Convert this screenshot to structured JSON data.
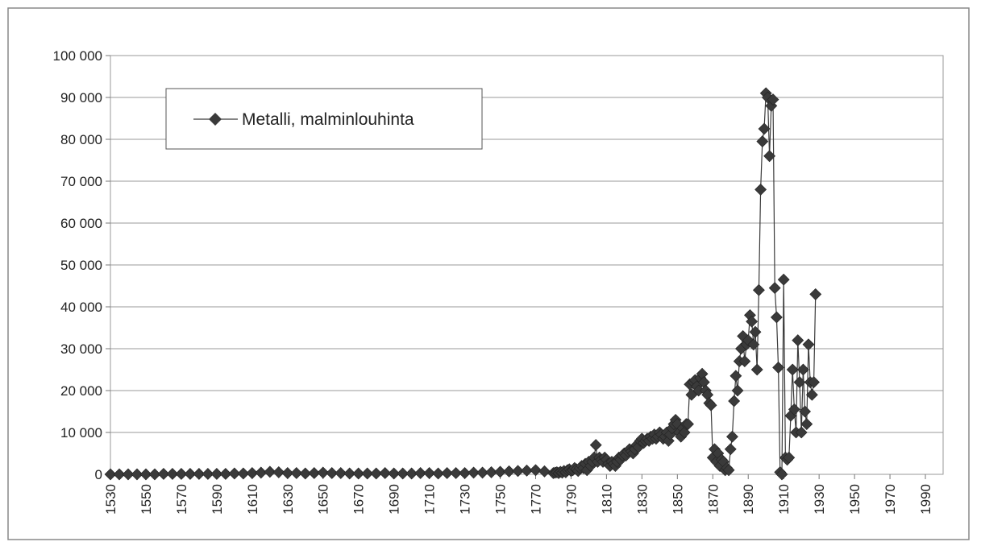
{
  "chart_data": {
    "type": "line",
    "x": [
      1530,
      1535,
      1540,
      1545,
      1550,
      1555,
      1560,
      1565,
      1570,
      1575,
      1580,
      1585,
      1590,
      1595,
      1600,
      1605,
      1610,
      1615,
      1620,
      1625,
      1630,
      1635,
      1640,
      1645,
      1650,
      1655,
      1660,
      1665,
      1670,
      1675,
      1680,
      1685,
      1690,
      1695,
      1700,
      1705,
      1710,
      1715,
      1720,
      1725,
      1730,
      1735,
      1740,
      1745,
      1750,
      1755,
      1760,
      1765,
      1770,
      1775,
      1780,
      1781,
      1782,
      1783,
      1784,
      1785,
      1786,
      1787,
      1788,
      1789,
      1790,
      1791,
      1792,
      1793,
      1794,
      1795,
      1796,
      1797,
      1798,
      1799,
      1800,
      1801,
      1802,
      1803,
      1804,
      1805,
      1806,
      1807,
      1808,
      1809,
      1810,
      1811,
      1812,
      1813,
      1814,
      1815,
      1816,
      1817,
      1818,
      1819,
      1820,
      1821,
      1822,
      1823,
      1824,
      1825,
      1826,
      1827,
      1828,
      1829,
      1830,
      1831,
      1832,
      1833,
      1834,
      1835,
      1836,
      1837,
      1838,
      1839,
      1840,
      1841,
      1842,
      1843,
      1844,
      1845,
      1846,
      1847,
      1848,
      1849,
      1850,
      1851,
      1852,
      1853,
      1854,
      1855,
      1856,
      1857,
      1858,
      1859,
      1860,
      1861,
      1862,
      1863,
      1864,
      1865,
      1866,
      1867,
      1868,
      1869,
      1870,
      1871,
      1872,
      1873,
      1874,
      1875,
      1876,
      1877,
      1878,
      1879,
      1880,
      1881,
      1882,
      1883,
      1884,
      1885,
      1886,
      1887,
      1888,
      1889,
      1890,
      1891,
      1892,
      1893,
      1894,
      1895,
      1896,
      1897,
      1898,
      1899,
      1900,
      1901,
      1902,
      1903,
      1904,
      1905,
      1906,
      1907,
      1908,
      1909,
      1910,
      1911,
      1912,
      1913,
      1914,
      1915,
      1916,
      1917,
      1918,
      1919,
      1920,
      1921,
      1922,
      1923,
      1924,
      1925,
      1926,
      1927,
      1928
    ],
    "series": [
      {
        "name": "Metalli, malminlouhinta",
        "color": "#3a3a3a",
        "values": [
          0,
          0,
          0,
          0,
          0,
          0,
          100,
          100,
          100,
          100,
          100,
          100,
          100,
          100,
          200,
          200,
          300,
          400,
          600,
          500,
          300,
          300,
          200,
          300,
          400,
          300,
          300,
          200,
          200,
          200,
          200,
          300,
          200,
          200,
          200,
          300,
          300,
          200,
          300,
          300,
          300,
          400,
          400,
          500,
          600,
          700,
          800,
          900,
          1000,
          700,
          300,
          400,
          500,
          300,
          600,
          400,
          800,
          500,
          1000,
          1200,
          800,
          1000,
          1500,
          1200,
          800,
          1500,
          2000,
          1500,
          2500,
          1000,
          3000,
          2000,
          3000,
          4000,
          7000,
          3000,
          4000,
          3500,
          3000,
          4000,
          3500,
          2500,
          2000,
          3000,
          2500,
          2000,
          3000,
          4000,
          3500,
          4500,
          5000,
          4500,
          5500,
          6000,
          5500,
          5000,
          6000,
          7000,
          6500,
          8000,
          8500,
          7500,
          8000,
          8500,
          8000,
          9000,
          8500,
          9500,
          8500,
          9000,
          10000,
          9500,
          8500,
          9000,
          10000,
          8000,
          9500,
          11000,
          12000,
          13000,
          12000,
          10000,
          9000,
          11000,
          10000,
          12000,
          12000,
          21500,
          19000,
          22000,
          22500,
          21000,
          20000,
          23000,
          24000,
          22000,
          20000,
          19000,
          17000,
          16500,
          4000,
          6000,
          3000,
          5000,
          2000,
          3500,
          3000,
          1000,
          1500,
          1000,
          6000,
          9000,
          17500,
          23500,
          20000,
          27000,
          30000,
          33000,
          27000,
          31000,
          32000,
          38000,
          36500,
          31000,
          34000,
          25000,
          44000,
          68000,
          79500,
          82500,
          91000,
          90000,
          76000,
          88000,
          89500,
          44500,
          37500,
          25500,
          500,
          0,
          46500,
          4000,
          3500,
          4000,
          14000,
          25000,
          15500,
          10000,
          32000,
          22000,
          10000,
          25000,
          15000,
          12000,
          31000,
          22000,
          19000,
          22000,
          43000
        ]
      }
    ],
    "xlim": [
      1530,
      2000
    ],
    "xticks": [
      1530,
      1550,
      1570,
      1590,
      1610,
      1630,
      1650,
      1670,
      1690,
      1710,
      1730,
      1750,
      1770,
      1790,
      1810,
      1830,
      1850,
      1870,
      1890,
      1910,
      1930,
      1950,
      1970,
      1990
    ],
    "ylim": [
      0,
      100000
    ],
    "yticks": [
      0,
      {
        "value": 10000,
        "label": "10 000"
      },
      {
        "value": 20000,
        "label": "20 000"
      },
      {
        "value": 30000,
        "label": "30 000"
      },
      {
        "value": 40000,
        "label": "40 000"
      },
      {
        "value": 50000,
        "label": "50 000"
      },
      {
        "value": 60000,
        "label": "60 000"
      },
      {
        "value": 70000,
        "label": "70 000"
      },
      {
        "value": 80000,
        "label": "80 000"
      },
      {
        "value": 90000,
        "label": "90 000"
      },
      {
        "value": 100000,
        "label": "100 000"
      }
    ],
    "grid": true,
    "legend": "upper left"
  }
}
